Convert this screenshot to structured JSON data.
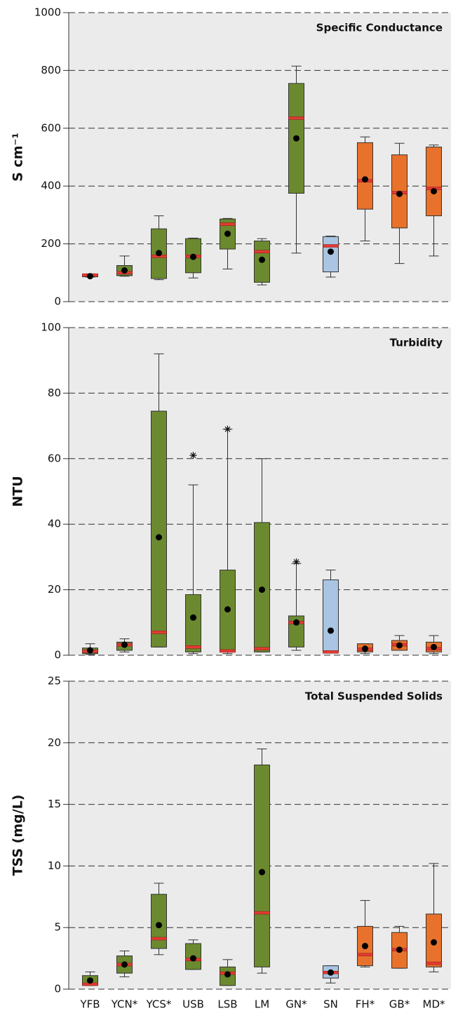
{
  "chart_data": [
    {
      "type": "box",
      "title": "Specific Conductance",
      "ylabel": "S cm⁻¹",
      "ylim": [
        0,
        1000
      ],
      "yticks": [
        0,
        200,
        400,
        600,
        800,
        1000
      ],
      "grid": true,
      "colors": [
        "#6b8a2f",
        "#6b8a2f",
        "#6b8a2f",
        "#6b8a2f",
        "#6b8a2f",
        "#6b8a2f",
        "#6b8a2f",
        "#a9c5e3",
        "#e8722c",
        "#e8722c",
        "#e8722c"
      ],
      "whislo": [
        85,
        88,
        76,
        82,
        113,
        58,
        168,
        85,
        210,
        132,
        158
      ],
      "q1": [
        86,
        90,
        80,
        100,
        182,
        67,
        375,
        103,
        320,
        255,
        297
      ],
      "med": [
        92,
        100,
        157,
        157,
        268,
        173,
        635,
        193,
        418,
        377,
        392
      ],
      "q3": [
        95,
        125,
        252,
        218,
        286,
        210,
        755,
        225,
        550,
        508,
        535
      ],
      "whishi": [
        96,
        158,
        297,
        220,
        288,
        218,
        815,
        227,
        570,
        548,
        542
      ],
      "mean": [
        88,
        108,
        168,
        155,
        235,
        145,
        565,
        173,
        423,
        373,
        382
      ],
      "outliers": [
        [],
        [],
        [],
        [],
        [],
        [],
        [],
        [],
        [],
        [],
        []
      ]
    },
    {
      "type": "box",
      "title": "Turbidity",
      "ylabel": "NTU",
      "ylim": [
        0,
        100
      ],
      "yticks": [
        0,
        20,
        40,
        60,
        80,
        100
      ],
      "grid": true,
      "colors": [
        "#6b8a2f",
        "#6b8a2f",
        "#6b8a2f",
        "#6b8a2f",
        "#6b8a2f",
        "#6b8a2f",
        "#6b8a2f",
        "#a9c5e3",
        "#e8722c",
        "#e8722c",
        "#e8722c"
      ],
      "whislo": [
        0.2,
        1,
        2.5,
        0.5,
        0.5,
        1,
        1.5,
        1,
        0.5,
        1.5,
        0.5
      ],
      "q1": [
        0.5,
        1.5,
        2.5,
        1,
        1,
        1,
        2.5,
        1,
        1,
        1.5,
        1
      ],
      "med": [
        1.2,
        3.2,
        7,
        2.5,
        1.3,
        2,
        10,
        1,
        1.8,
        3.2,
        2
      ],
      "q3": [
        2.2,
        4,
        74.5,
        18.5,
        26,
        40.5,
        12,
        23,
        3.5,
        4.5,
        4
      ],
      "whishi": [
        3.5,
        5,
        92,
        52,
        69,
        60,
        28,
        26,
        3.5,
        6,
        6
      ],
      "mean": [
        1.5,
        3.2,
        36,
        11.5,
        14,
        20,
        10,
        7.5,
        2,
        3,
        2.5
      ],
      "outliers": [
        [],
        [],
        [],
        [
          61
        ],
        [
          69
        ],
        [],
        [
          28.5
        ],
        [],
        [],
        [],
        []
      ]
    },
    {
      "type": "box",
      "title": "Total Suspended Solids",
      "ylabel": "TSS (mg/L)",
      "ylim": [
        0,
        25
      ],
      "yticks": [
        0,
        5,
        10,
        15,
        20,
        25
      ],
      "grid": true,
      "categories": [
        "YFB",
        "YCN*",
        "YCS*",
        "USB",
        "LSB",
        "LM",
        "GN*",
        "SN",
        "FH*",
        "GB*",
        "MD*"
      ],
      "colors": [
        "#6b8a2f",
        "#6b8a2f",
        "#6b8a2f",
        "#6b8a2f",
        "#6b8a2f",
        "#6b8a2f",
        "#6b8a2f",
        "#a9c5e3",
        "#e8722c",
        "#e8722c",
        "#e8722c"
      ],
      "whislo": [
        0.3,
        1,
        2.8,
        1.6,
        0.3,
        1.3,
        null,
        0.5,
        1.8,
        1.7,
        1.4
      ],
      "q1": [
        0.3,
        1.3,
        3.3,
        1.6,
        0.3,
        1.8,
        null,
        0.9,
        1.9,
        1.7,
        1.8
      ],
      "med": [
        0.4,
        2.0,
        4.1,
        2.4,
        1.3,
        6.2,
        null,
        1.35,
        2.8,
        3.2,
        2.1
      ],
      "q3": [
        1.1,
        2.7,
        7.7,
        3.7,
        1.8,
        18.2,
        null,
        1.9,
        5.1,
        4.6,
        6.1
      ],
      "whishi": [
        1.4,
        3.1,
        8.6,
        4.0,
        2.4,
        19.5,
        null,
        1.9,
        7.2,
        5.1,
        10.2
      ],
      "mean": [
        0.7,
        2.0,
        5.2,
        2.5,
        1.2,
        9.5,
        null,
        1.35,
        3.5,
        3.2,
        3.8
      ],
      "outliers": [
        [],
        [],
        [],
        [],
        [],
        [],
        [],
        [],
        [],
        [],
        []
      ]
    }
  ]
}
